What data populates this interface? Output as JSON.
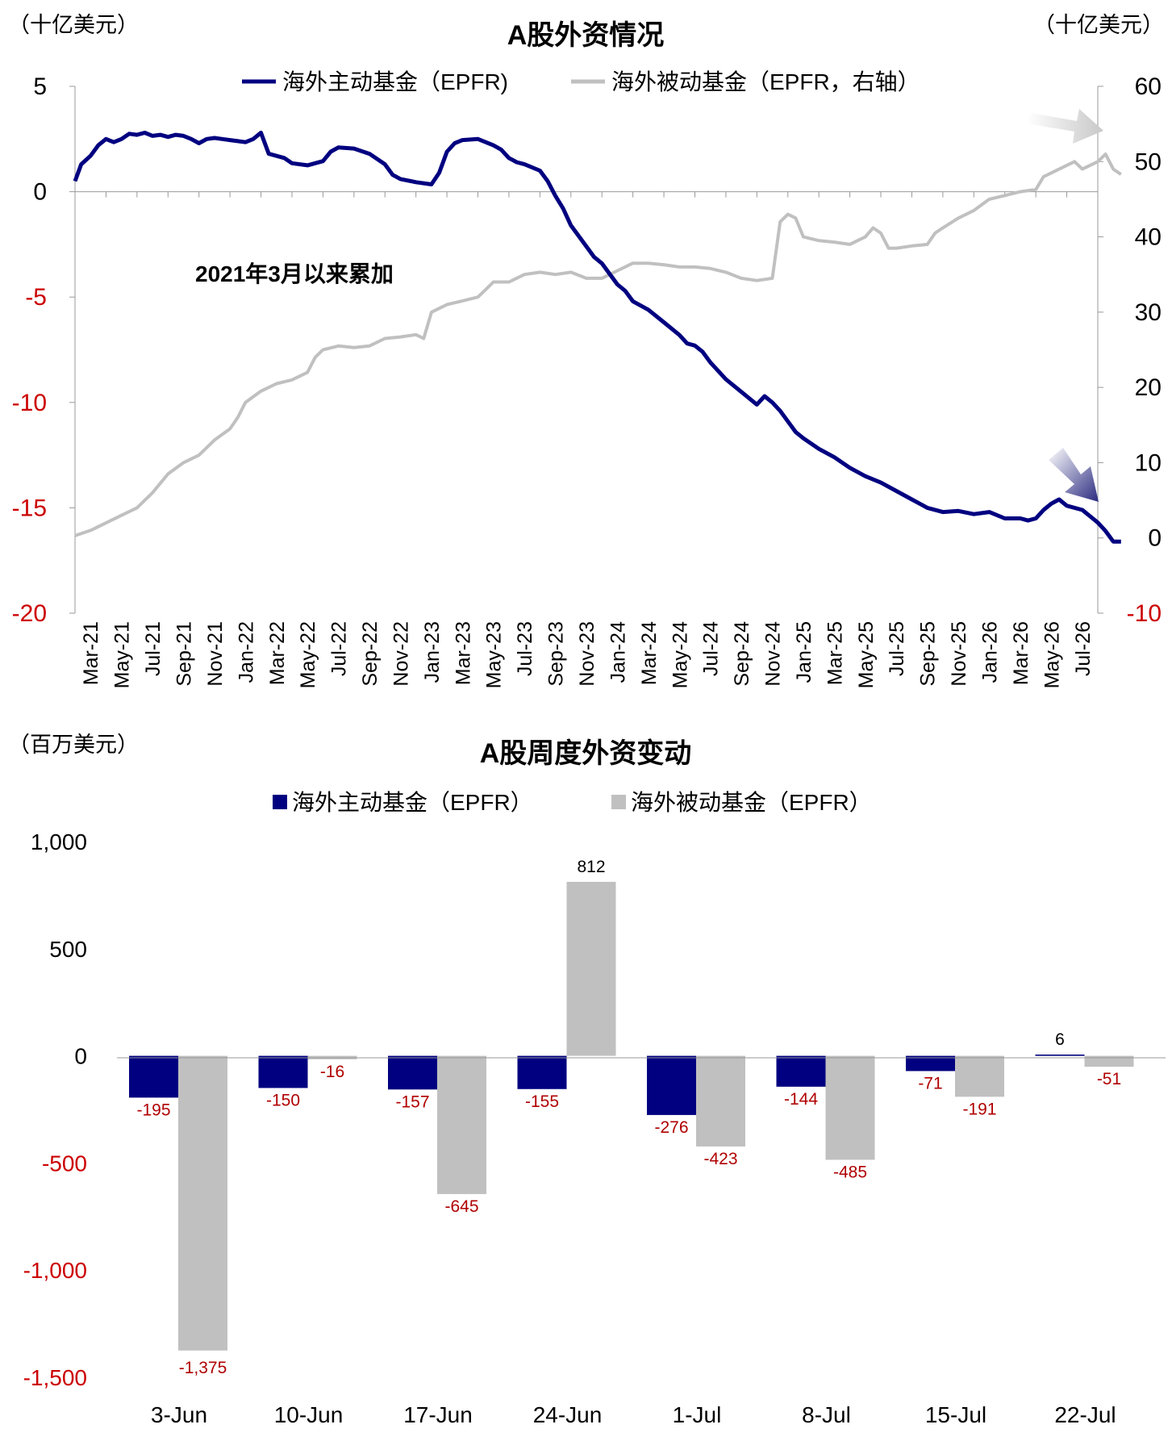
{
  "colors": {
    "active": "#000080",
    "passive": "#c0c0c0",
    "negative": "#cc0000",
    "label_negative": "#b00000",
    "arrow_blue": "#3a3a8c",
    "arrow_gray": "#c8c8c8"
  },
  "chart_data": [
    {
      "type": "line",
      "title": "A股外资情况",
      "left_unit": "（十亿美元）",
      "right_unit": "（十亿美元）",
      "annotation": "2021年3月以来累加",
      "y_left": {
        "min": -20,
        "max": 5,
        "ticks": [
          "5",
          "0",
          "-5",
          "-10",
          "-15",
          "-20"
        ],
        "tick_values": [
          5,
          0,
          -5,
          -10,
          -15,
          -20
        ]
      },
      "y_right": {
        "min": -10,
        "max": 60,
        "ticks": [
          "60",
          "50",
          "40",
          "30",
          "20",
          "10",
          "0",
          "-10"
        ],
        "tick_values": [
          60,
          50,
          40,
          30,
          20,
          10,
          0,
          -10
        ]
      },
      "x_ticks": [
        "Mar-21",
        "May-21",
        "Jul-21",
        "Sep-21",
        "Nov-21",
        "Jan-22",
        "Mar-22",
        "May-22",
        "Jul-22",
        "Sep-22",
        "Nov-22",
        "Jan-23",
        "Mar-23",
        "May-23",
        "Jul-23",
        "Sep-23",
        "Nov-23",
        "Jan-24",
        "Mar-24",
        "May-24",
        "Jul-24",
        "Sep-24",
        "Nov-24",
        "Jan-25",
        "Mar-25",
        "May-25",
        "Jul-25",
        "Sep-25",
        "Nov-25",
        "Jan-26",
        "Mar-26",
        "May-26",
        "Jul-26"
      ],
      "x_range": [
        0,
        65
      ],
      "grid": false,
      "series": [
        {
          "name": "海外主动基金（EPFR)",
          "axis": "left",
          "points": [
            [
              0,
              0.5
            ],
            [
              0.4,
              1.3
            ],
            [
              1,
              1.7
            ],
            [
              1.5,
              2.2
            ],
            [
              2,
              2.5
            ],
            [
              2.5,
              2.35
            ],
            [
              3,
              2.5
            ],
            [
              3.5,
              2.75
            ],
            [
              4,
              2.7
            ],
            [
              4.5,
              2.8
            ],
            [
              5,
              2.65
            ],
            [
              5.5,
              2.7
            ],
            [
              6,
              2.6
            ],
            [
              6.5,
              2.7
            ],
            [
              7,
              2.65
            ],
            [
              7.5,
              2.5
            ],
            [
              8,
              2.3
            ],
            [
              8.5,
              2.5
            ],
            [
              9,
              2.55
            ],
            [
              9.5,
              2.5
            ],
            [
              10,
              2.45
            ],
            [
              10.5,
              2.4
            ],
            [
              11,
              2.35
            ],
            [
              11.5,
              2.5
            ],
            [
              12,
              2.8
            ],
            [
              12.5,
              1.8
            ],
            [
              13,
              1.7
            ],
            [
              13.5,
              1.6
            ],
            [
              14,
              1.35
            ],
            [
              15,
              1.25
            ],
            [
              16,
              1.45
            ],
            [
              16.5,
              1.9
            ],
            [
              17,
              2.1
            ],
            [
              18,
              2.05
            ],
            [
              19,
              1.8
            ],
            [
              20,
              1.3
            ],
            [
              20.5,
              0.8
            ],
            [
              21,
              0.6
            ],
            [
              22,
              0.45
            ],
            [
              23,
              0.35
            ],
            [
              23.5,
              0.9
            ],
            [
              24,
              1.9
            ],
            [
              24.5,
              2.3
            ],
            [
              25,
              2.45
            ],
            [
              26,
              2.5
            ],
            [
              26.5,
              2.35
            ],
            [
              27,
              2.2
            ],
            [
              27.5,
              2.0
            ],
            [
              28,
              1.6
            ],
            [
              28.5,
              1.4
            ],
            [
              29,
              1.3
            ],
            [
              30,
              1.0
            ],
            [
              30.5,
              0.5
            ],
            [
              31,
              -0.2
            ],
            [
              31.5,
              -0.8
            ],
            [
              32,
              -1.6
            ],
            [
              33,
              -2.6
            ],
            [
              33.5,
              -3.1
            ],
            [
              34,
              -3.4
            ],
            [
              34.5,
              -3.9
            ],
            [
              35,
              -4.4
            ],
            [
              35.5,
              -4.7
            ],
            [
              36,
              -5.2
            ],
            [
              37,
              -5.6
            ],
            [
              38,
              -6.2
            ],
            [
              39,
              -6.8
            ],
            [
              39.5,
              -7.2
            ],
            [
              40,
              -7.3
            ],
            [
              40.5,
              -7.6
            ],
            [
              41,
              -8.1
            ],
            [
              42,
              -8.9
            ],
            [
              43,
              -9.5
            ],
            [
              44,
              -10.1
            ],
            [
              44.5,
              -9.7
            ],
            [
              45,
              -10.0
            ],
            [
              45.5,
              -10.4
            ],
            [
              46,
              -10.9
            ],
            [
              46.5,
              -11.4
            ],
            [
              47,
              -11.7
            ],
            [
              48,
              -12.2
            ],
            [
              49,
              -12.6
            ],
            [
              50,
              -13.1
            ],
            [
              51,
              -13.5
            ],
            [
              52,
              -13.8
            ],
            [
              53,
              -14.2
            ],
            [
              54,
              -14.6
            ],
            [
              55,
              -15.0
            ],
            [
              56,
              -15.2
            ],
            [
              57,
              -15.15
            ],
            [
              58,
              -15.3
            ],
            [
              59,
              -15.2
            ],
            [
              60,
              -15.5
            ],
            [
              61,
              -15.5
            ],
            [
              61.5,
              -15.6
            ],
            [
              62,
              -15.5
            ],
            [
              62.5,
              -15.1
            ],
            [
              63,
              -14.8
            ],
            [
              63.5,
              -14.6
            ],
            [
              64,
              -14.9
            ],
            [
              65,
              -15.1
            ],
            [
              65.5,
              -15.4
            ],
            [
              66,
              -15.7
            ],
            [
              66.5,
              -16.1
            ],
            [
              67,
              -16.6
            ],
            [
              67.5,
              -16.6
            ]
          ]
        },
        {
          "name": "海外被动基金（EPFR，右轴）",
          "axis": "right",
          "points": [
            [
              0,
              0.3
            ],
            [
              1,
              1
            ],
            [
              2,
              2
            ],
            [
              3,
              3
            ],
            [
              4,
              4
            ],
            [
              5,
              6
            ],
            [
              6,
              8.5
            ],
            [
              7,
              10
            ],
            [
              8,
              11
            ],
            [
              9,
              13
            ],
            [
              10,
              14.5
            ],
            [
              10.5,
              16
            ],
            [
              11,
              18
            ],
            [
              12,
              19.5
            ],
            [
              13,
              20.5
            ],
            [
              14,
              21
            ],
            [
              15,
              22
            ],
            [
              15.5,
              24
            ],
            [
              16,
              25
            ],
            [
              17,
              25.5
            ],
            [
              18,
              25.3
            ],
            [
              19,
              25.5
            ],
            [
              20,
              26.5
            ],
            [
              21,
              26.7
            ],
            [
              22,
              27
            ],
            [
              22.5,
              26.5
            ],
            [
              23,
              30
            ],
            [
              24,
              31
            ],
            [
              25,
              31.5
            ],
            [
              26,
              32
            ],
            [
              26.5,
              33
            ],
            [
              27,
              34
            ],
            [
              28,
              34
            ],
            [
              29,
              35
            ],
            [
              30,
              35.3
            ],
            [
              31,
              35
            ],
            [
              32,
              35.3
            ],
            [
              33,
              34.5
            ],
            [
              34,
              34.5
            ],
            [
              35,
              35.5
            ],
            [
              36,
              36.5
            ],
            [
              37,
              36.5
            ],
            [
              38,
              36.3
            ],
            [
              39,
              36
            ],
            [
              40,
              36
            ],
            [
              41,
              35.8
            ],
            [
              42,
              35.3
            ],
            [
              43,
              34.5
            ],
            [
              44,
              34.2
            ],
            [
              45,
              34.5
            ],
            [
              45.5,
              42
            ],
            [
              46,
              43
            ],
            [
              46.5,
              42.5
            ],
            [
              47,
              40
            ],
            [
              48,
              39.5
            ],
            [
              49,
              39.3
            ],
            [
              50,
              39
            ],
            [
              50.5,
              39.5
            ],
            [
              51,
              40
            ],
            [
              51.5,
              41.2
            ],
            [
              52,
              40.5
            ],
            [
              52.5,
              38.5
            ],
            [
              53,
              38.5
            ],
            [
              54,
              38.8
            ],
            [
              55,
              39
            ],
            [
              55.5,
              40.5
            ],
            [
              56,
              41.2
            ],
            [
              57,
              42.5
            ],
            [
              58,
              43.5
            ],
            [
              59,
              45
            ],
            [
              60,
              45.5
            ],
            [
              61,
              46
            ],
            [
              62,
              46.3
            ],
            [
              62.5,
              48
            ],
            [
              63,
              48.5
            ],
            [
              64,
              49.5
            ],
            [
              64.5,
              50
            ],
            [
              65,
              49
            ],
            [
              65.5,
              49.5
            ],
            [
              66,
              50
            ],
            [
              66.5,
              51
            ],
            [
              67,
              49
            ],
            [
              67.5,
              48.3
            ]
          ]
        }
      ]
    },
    {
      "type": "bar",
      "title": "A股周度外资变动",
      "unit": "（百万美元）",
      "categories": [
        "3-Jun",
        "10-Jun",
        "17-Jun",
        "24-Jun",
        "1-Jul",
        "8-Jul",
        "15-Jul",
        "22-Jul"
      ],
      "ylim": [
        -1500,
        1000
      ],
      "y_ticks": [
        "1,000",
        "500",
        "0",
        "-500",
        "-1,000",
        "-1,500"
      ],
      "y_tick_values": [
        1000,
        500,
        0,
        -500,
        -1000,
        -1500
      ],
      "grid": false,
      "series": [
        {
          "name": "海外主动基金（EPFR）",
          "values": [
            -195,
            -150,
            -157,
            -155,
            -276,
            -144,
            -71,
            6
          ],
          "labels": [
            "-195",
            "-150",
            "-157",
            "-155",
            "-276",
            "-144",
            "-71",
            "6"
          ]
        },
        {
          "name": "海外被动基金（EPFR）",
          "values": [
            -1375,
            -16,
            -645,
            812,
            -423,
            -485,
            -191,
            -51
          ],
          "labels": [
            "-1,375",
            "-16",
            "-645",
            "812",
            "-423",
            "-485",
            "-191",
            "-51"
          ]
        }
      ]
    }
  ]
}
